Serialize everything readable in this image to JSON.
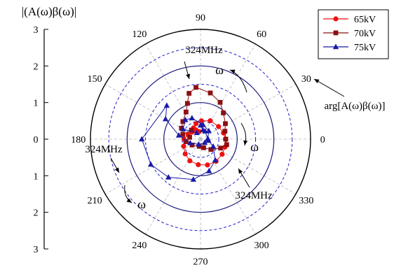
{
  "chart_data": {
    "type": "polar-line",
    "ylabel": "|(A(ω)β(ω)|",
    "radial_axis": {
      "min": 0,
      "max": 3,
      "ticks": [
        "0",
        "1",
        "2",
        "3"
      ],
      "tick_labels_left": [
        "3",
        "2",
        "1",
        "0",
        "1",
        "2",
        "3"
      ]
    },
    "angle_axis": {
      "label": "arg[A(ω)β(ω)]",
      "unit": "degree",
      "ticks": [
        0,
        30,
        60,
        90,
        120,
        150,
        180,
        210,
        240,
        270,
        300,
        330
      ]
    },
    "legend": {
      "position": "top-right"
    },
    "series": [
      {
        "name": "65kV",
        "color": "#ee1111",
        "marker": "circle",
        "points": [
          [
            0.28,
            116
          ],
          [
            0.36,
            122
          ],
          [
            0.44,
            106
          ],
          [
            0.5,
            87
          ],
          [
            0.57,
            62
          ],
          [
            0.6,
            35
          ],
          [
            0.65,
            15
          ],
          [
            0.68,
            0
          ],
          [
            0.7,
            -18
          ],
          [
            0.72,
            -35
          ],
          [
            0.74,
            -55
          ],
          [
            0.73,
            -75
          ],
          [
            0.7,
            -95
          ],
          [
            0.66,
            -116
          ],
          [
            0.58,
            -136
          ],
          [
            0.5,
            -157
          ],
          [
            0.45,
            -180
          ],
          [
            0.36,
            160
          ],
          [
            0.3,
            140
          ],
          [
            0.25,
            118
          ],
          [
            0.21,
            100
          ]
        ]
      },
      {
        "name": "70kV",
        "color": "#8b1010",
        "marker": "square",
        "points": [
          [
            0.35,
            135
          ],
          [
            0.5,
            165
          ],
          [
            0.6,
            150
          ],
          [
            0.68,
            135
          ],
          [
            0.84,
            118
          ],
          [
            1.04,
            110
          ],
          [
            1.29,
            104
          ],
          [
            1.42,
            95
          ],
          [
            1.29,
            78
          ],
          [
            1.14,
            62
          ],
          [
            0.95,
            49
          ],
          [
            0.8,
            32
          ],
          [
            0.7,
            18
          ],
          [
            0.69,
            0
          ],
          [
            0.73,
            -12
          ],
          [
            0.6,
            -24
          ],
          [
            0.4,
            -45
          ],
          [
            0.25,
            -70
          ],
          [
            0.2,
            -100
          ],
          [
            0.28,
            -145
          ],
          [
            0.4,
            -170
          ],
          [
            0.3,
            170
          ]
        ]
      },
      {
        "name": "75kV",
        "color": "#1a1aa8",
        "marker": "triangle",
        "points": [
          [
            0.2,
            120
          ],
          [
            0.55,
            150
          ],
          [
            0.67,
            128
          ],
          [
            0.62,
            112
          ],
          [
            0.4,
            80
          ],
          [
            0.32,
            45
          ],
          [
            0.2,
            5
          ],
          [
            0.15,
            -40
          ],
          [
            0.15,
            -110
          ],
          [
            0.3,
            -160
          ],
          [
            0.6,
            170
          ],
          [
            1.1,
            150
          ],
          [
            1.3,
            135
          ],
          [
            1.6,
            180
          ],
          [
            1.52,
            -153
          ],
          [
            1.36,
            -130
          ],
          [
            1.12,
            -100
          ],
          [
            0.9,
            -75
          ],
          [
            0.7,
            -55
          ],
          [
            0.4,
            -30
          ],
          [
            0.22,
            -10
          ],
          [
            0.25,
            60
          ],
          [
            0.26,
            75
          ],
          [
            0.38,
            90
          ]
        ]
      }
    ],
    "annotations": [
      {
        "text": "324MHz",
        "id": "ann-324-top"
      },
      {
        "text": "324MHz",
        "id": "ann-324-left"
      },
      {
        "text": "324MHz",
        "id": "ann-324-right"
      },
      {
        "text": "ω",
        "id": "omega-top"
      },
      {
        "text": "ω",
        "id": "omega-right"
      },
      {
        "text": "ω",
        "id": "omega-bottom-left"
      }
    ]
  }
}
